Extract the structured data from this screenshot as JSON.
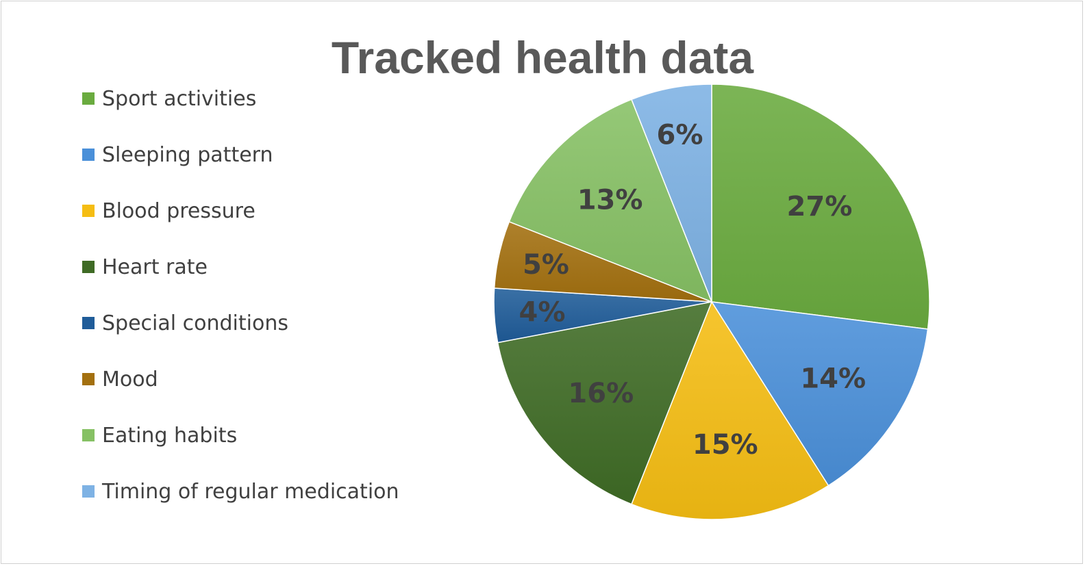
{
  "chart_data": {
    "type": "pie",
    "title": "Tracked health data",
    "legend_position": "left",
    "categories": [
      "Sport activities",
      "Sleeping pattern",
      "Blood pressure",
      "Heart rate",
      "Special conditions",
      "Mood",
      "Eating habits",
      "Timing of regular medication"
    ],
    "values": [
      27,
      14,
      15,
      16,
      4,
      5,
      13,
      6
    ],
    "labels": [
      "27%",
      "14%",
      "15%",
      "16%",
      "4%",
      "5%",
      "13%",
      "6%"
    ],
    "colors": [
      "#6aab3f",
      "#4a90d9",
      "#f5bd13",
      "#3f6b25",
      "#1f5c99",
      "#a3700f",
      "#86c164",
      "#7eb2e4"
    ]
  }
}
